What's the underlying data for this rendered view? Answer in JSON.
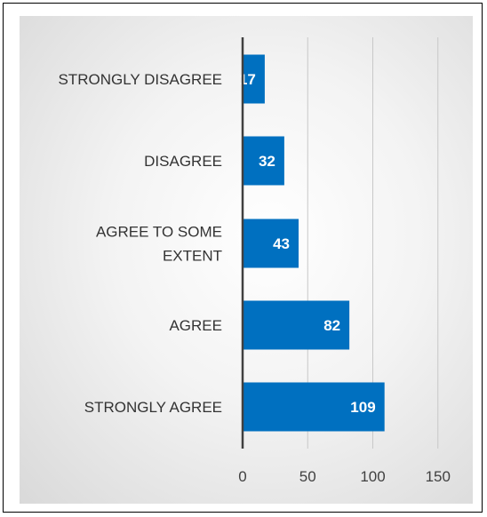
{
  "chart_data": {
    "type": "bar",
    "orientation": "horizontal",
    "categories": [
      "STRONGLY DISAGREE",
      "DISAGREE",
      "AGREE TO SOME EXTENT",
      "AGREE",
      "STRONGLY AGREE"
    ],
    "values": [
      17,
      32,
      43,
      82,
      109
    ],
    "xlim": [
      0,
      150
    ],
    "xticks": [
      0,
      50,
      100,
      150
    ],
    "grid": true,
    "bar_color": "#0070c0",
    "data_label_color": "#ffffff",
    "title": "",
    "xlabel": "",
    "ylabel": ""
  }
}
